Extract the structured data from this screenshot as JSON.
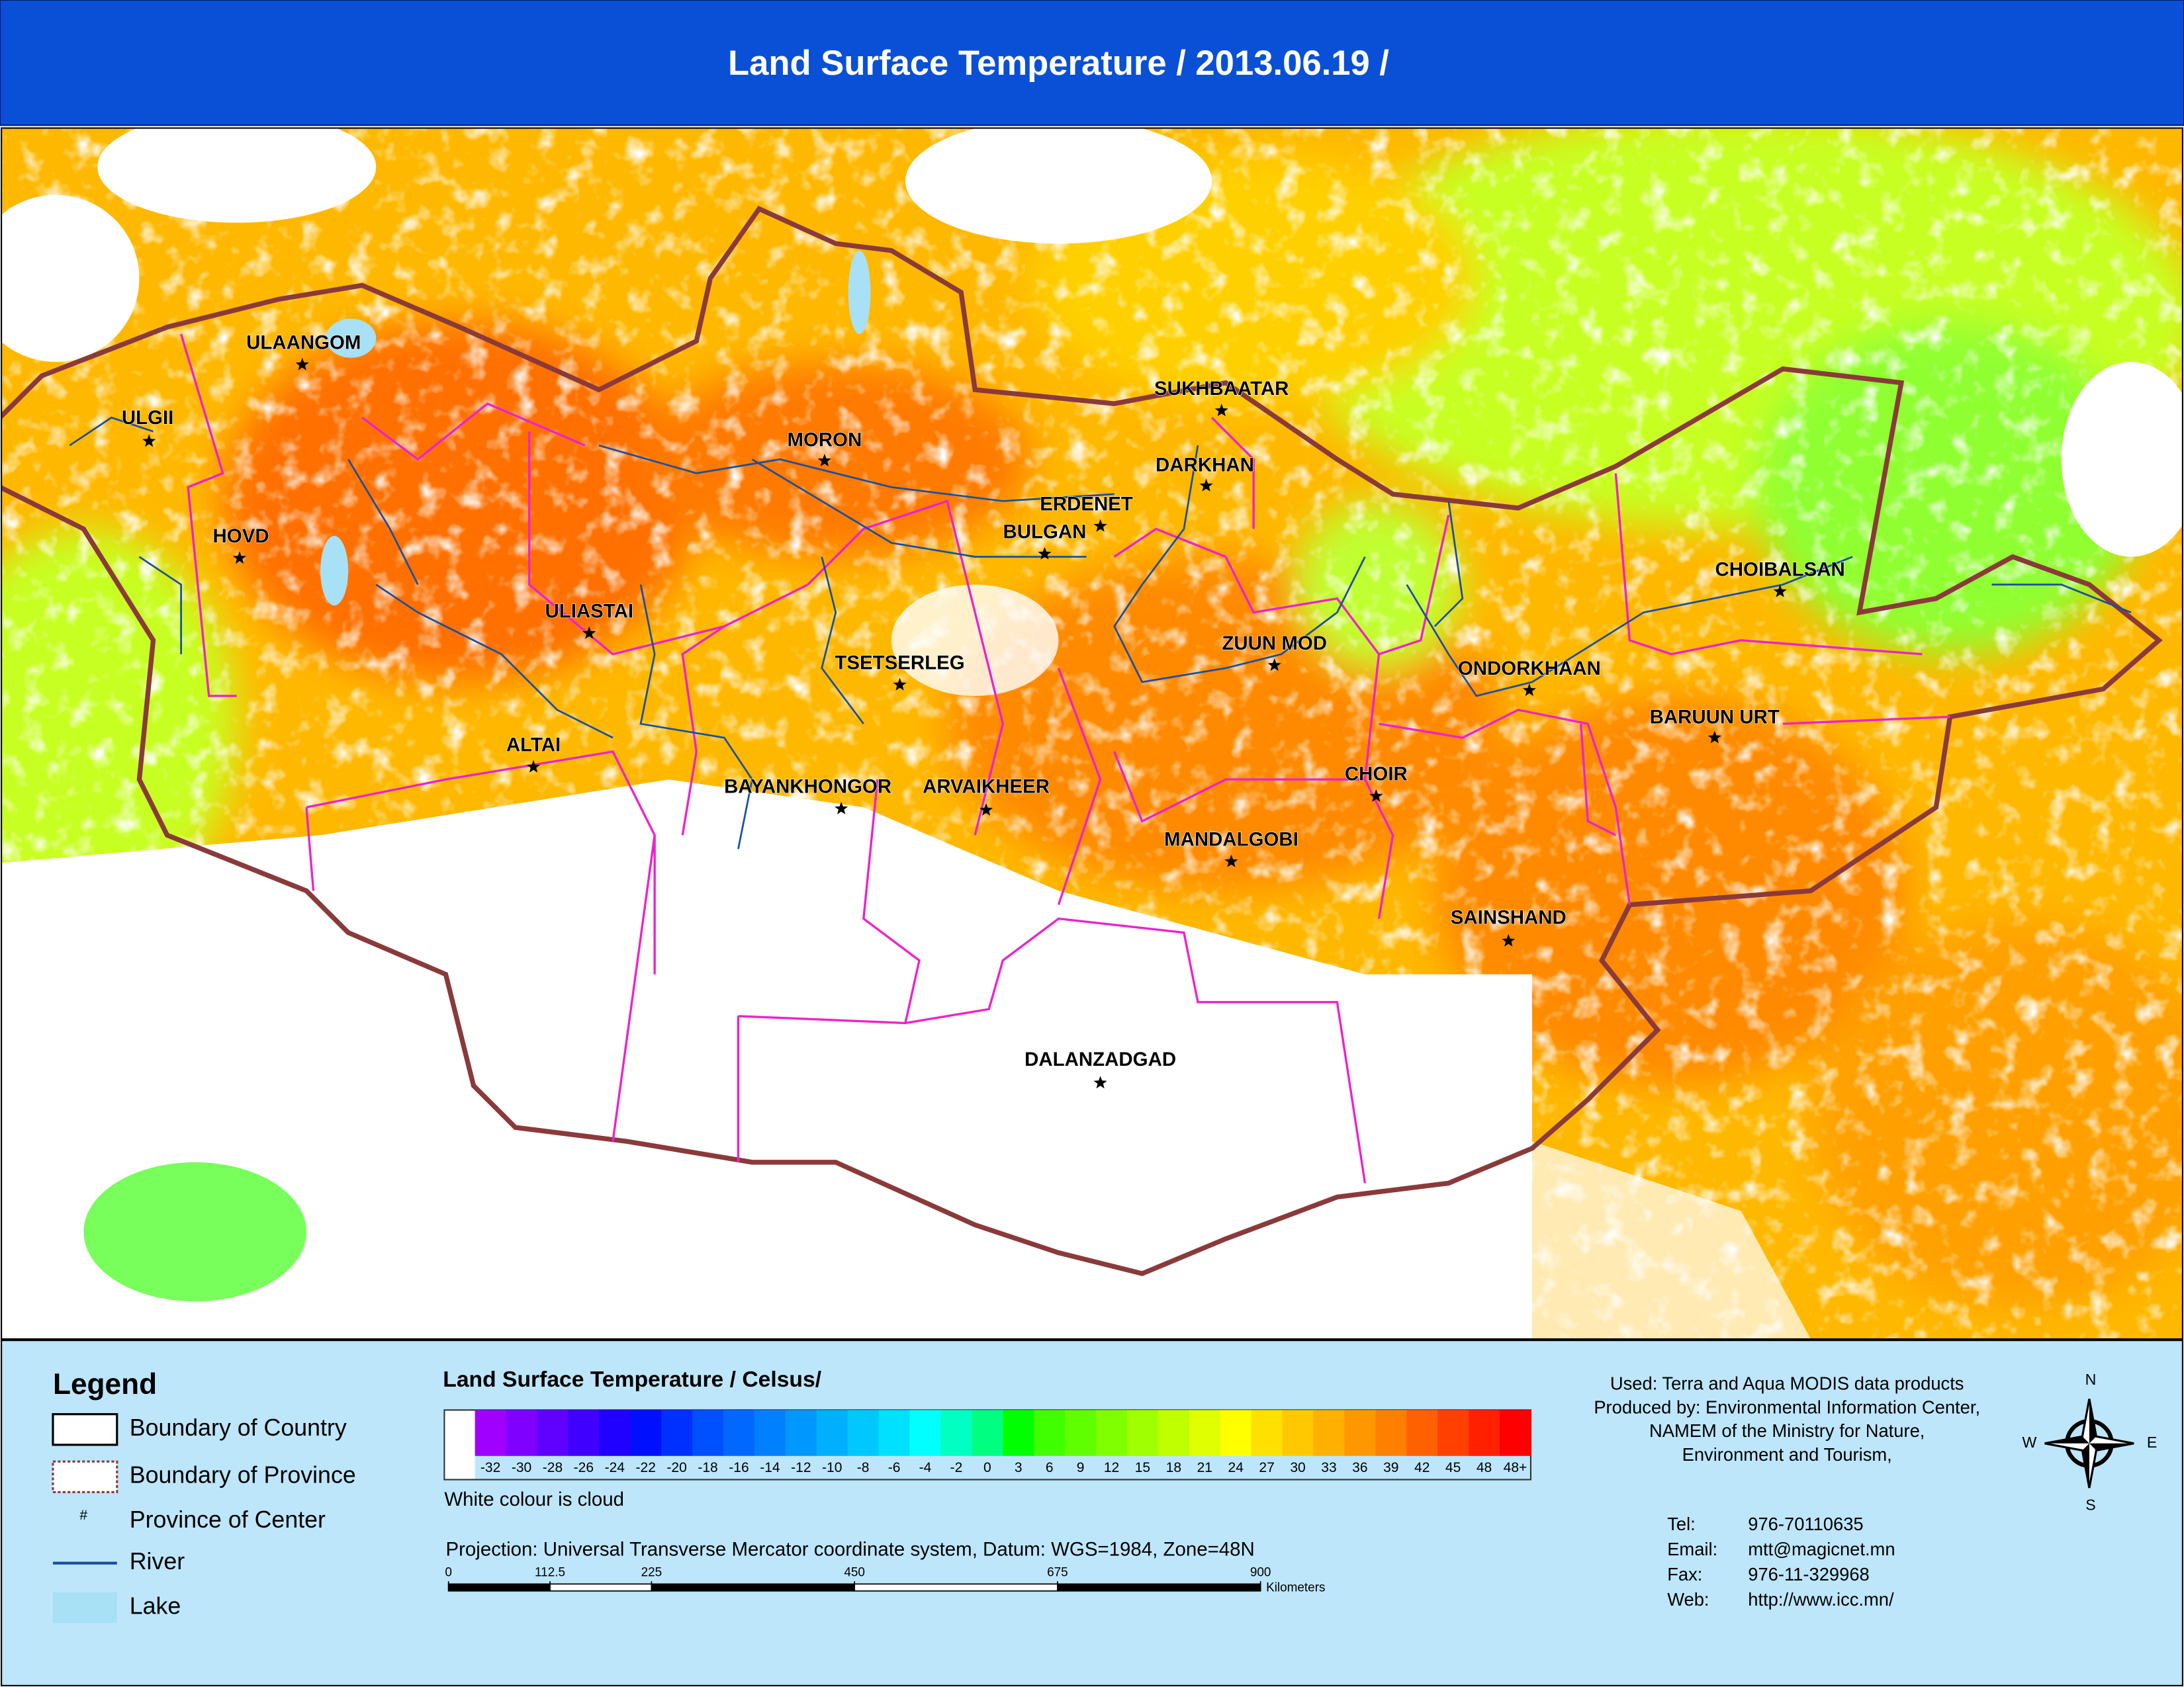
{
  "header": {
    "title": "Land Surface Temperature / 2013.06.19 /"
  },
  "map": {
    "places": [
      "ULAANGOM",
      "ULGII",
      "HOVD",
      "MORON",
      "SUKHBAATAR",
      "DARKHAN",
      "ERDENET",
      "BULGAN",
      "ULIASTAI",
      "TSETSERLEG",
      "ZUUN MOD",
      "CHOIBALSAN",
      "ONDORKHAAN",
      "BARUUN URT",
      "ALTAI",
      "CHOIR",
      "BAYANKHONGOR",
      "ARVAIKHEER",
      "MANDALGOBI",
      "SAINSHAND",
      "DALANZADGAD"
    ]
  },
  "legend": {
    "title": "Legend",
    "items": [
      "Boundary of Country",
      "Boundary of Province",
      "Province of Center",
      "River",
      "Lake"
    ],
    "center_symbol": "#"
  },
  "color_scale": {
    "title": "Land Surface Temperature / Celsus/",
    "labels": [
      "-32",
      "-30",
      "-28",
      "-26",
      "-24",
      "-22",
      "-20",
      "-18",
      "-16",
      "-14",
      "-12",
      "-10",
      "-8",
      "-6",
      "-4",
      "-2",
      "0",
      "3",
      "6",
      "9",
      "12",
      "15",
      "18",
      "21",
      "24",
      "27",
      "30",
      "33",
      "36",
      "39",
      "42",
      "45",
      "48",
      "48+"
    ],
    "colors": [
      "#a000ff",
      "#8000ff",
      "#6000ff",
      "#4000ff",
      "#2000ff",
      "#0010ff",
      "#0030ff",
      "#0050ff",
      "#0068ff",
      "#0080ff",
      "#0098ff",
      "#00b0ff",
      "#00c8ff",
      "#00e0ff",
      "#00ffff",
      "#00ffc0",
      "#00ff80",
      "#00ff00",
      "#40ff00",
      "#60ff00",
      "#80ff00",
      "#a0ff00",
      "#c0ff00",
      "#e0ff00",
      "#ffff00",
      "#ffe000",
      "#ffc800",
      "#ffb000",
      "#ff9800",
      "#ff8000",
      "#ff6000",
      "#ff4000",
      "#ff2000",
      "#ff0000"
    ],
    "note": "White colour is cloud"
  },
  "projection": "Projection: Universal Transverse Mercator coordinate system, Datum: WGS=1984, Zone=48N",
  "scale_bar": {
    "values": [
      0,
      112.5,
      225,
      450,
      675,
      900
    ],
    "unit": "Kilometers"
  },
  "credits": {
    "lines": [
      "Used: Terra and Aqua MODIS data products",
      "Produced by: Environmental Information Center,",
      "NAMEM of the Ministry for Nature,",
      "Environment and Tourism,"
    ],
    "contacts": [
      {
        "label": "Tel:",
        "value": "976-70110635"
      },
      {
        "label": "Email:",
        "value": "mtt@magicnet.mn"
      },
      {
        "label": "Fax:",
        "value": "976-11-329968"
      },
      {
        "label": "Web:",
        "value": "http://www.icc.mn/"
      }
    ]
  },
  "compass": {
    "n": "N",
    "e": "E",
    "s": "S",
    "w": "W"
  }
}
